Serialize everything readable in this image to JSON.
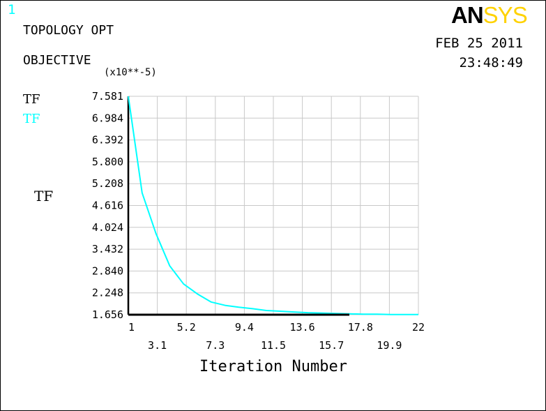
{
  "header": {
    "window_number": "1",
    "title_line1": "TOPOLOGY OPT",
    "title_line2": "OBJECTIVE",
    "date": "FEB 25 2011",
    "time": "23:48:49"
  },
  "logo": {
    "text_left": "AN",
    "text_right": "SYS",
    "color_left": "#000000",
    "color_right": "#ffd200"
  },
  "colors": {
    "background": "#ffffff",
    "frame": "#000000",
    "grid": "#c8c8c8",
    "curve": "#00ffff",
    "axis": "#000000"
  },
  "chart_data": {
    "type": "line",
    "title": "",
    "ylabel": "TF",
    "y_multiplier_label": "(x10**-5)",
    "xlabel": "Iteration Number",
    "xlim": [
      1,
      22
    ],
    "ylim": [
      1.656,
      7.581
    ],
    "x_ticks_upper": [
      "1",
      "5.2",
      "9.4",
      "13.6",
      "17.8",
      "22"
    ],
    "x_ticks_lower": [
      "3.1",
      "7.3",
      "11.5",
      "15.7",
      "19.9"
    ],
    "y_ticks": [
      "7.581",
      "6.984",
      "6.392",
      "5.800",
      "5.208",
      "4.616",
      "4.024",
      "3.432",
      "2.840",
      "2.248",
      "1.656"
    ],
    "legend": [
      {
        "label": "TF",
        "color": "#000000"
      },
      {
        "label": "TF",
        "color": "#00ffff"
      }
    ],
    "series": [
      {
        "name": "TF",
        "color": "#00ffff",
        "x": [
          1,
          2,
          3,
          4,
          5,
          6,
          7,
          8,
          9,
          10,
          11,
          12,
          13,
          14,
          15,
          16,
          17,
          18,
          19,
          20,
          21,
          22
        ],
        "values": [
          7.58,
          4.96,
          3.86,
          2.98,
          2.49,
          2.22,
          2.0,
          1.91,
          1.86,
          1.82,
          1.77,
          1.75,
          1.73,
          1.71,
          1.7,
          1.69,
          1.68,
          1.67,
          1.67,
          1.66,
          1.66,
          1.66
        ]
      },
      {
        "name": "TF",
        "color": "#000000",
        "x": [
          1,
          17
        ],
        "values": [
          1.656,
          1.656
        ]
      }
    ]
  }
}
